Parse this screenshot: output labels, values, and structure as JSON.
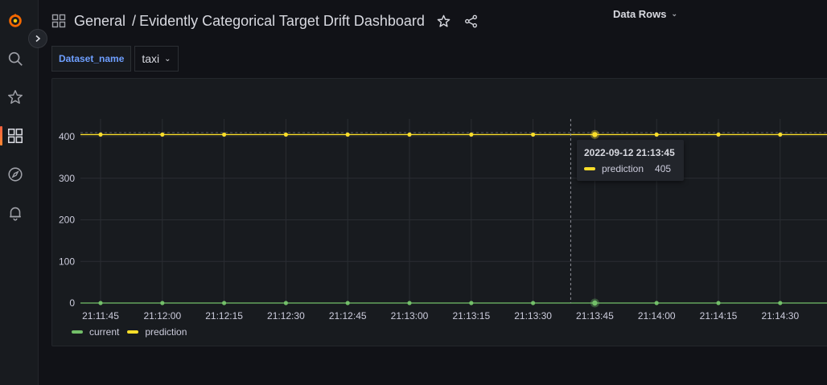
{
  "breadcrumb": {
    "folder": "General",
    "separator": "/",
    "dashboard": "Evidently Categorical Target Drift Dashboard"
  },
  "sidebar": {
    "items": [
      {
        "icon": "grafana-logo-icon"
      },
      {
        "icon": "search-icon"
      },
      {
        "icon": "star-icon"
      },
      {
        "icon": "dashboards-grid-icon",
        "active": true
      },
      {
        "icon": "compass-explore-icon"
      },
      {
        "icon": "bell-alerting-icon"
      }
    ]
  },
  "variables": {
    "label": "Dataset_name",
    "value": "taxi",
    "chevron": "⌄"
  },
  "panel": {
    "title": "Data Rows",
    "chevron": "⌄"
  },
  "tooltip": {
    "time": "2022-09-12 21:13:45",
    "series": "prediction",
    "value": "405"
  },
  "colors": {
    "current": "#73bf69",
    "prediction": "#fade2a"
  },
  "chart_data": {
    "type": "line",
    "title": "Data Rows",
    "x": [
      "21:11:45",
      "21:12:00",
      "21:12:15",
      "21:12:30",
      "21:12:45",
      "21:13:00",
      "21:13:15",
      "21:13:30",
      "21:13:45",
      "21:14:00",
      "21:14:15",
      "21:14:30"
    ],
    "series": [
      {
        "name": "current",
        "values": [
          0,
          0,
          0,
          0,
          0,
          0,
          0,
          0,
          0,
          0,
          0,
          0
        ]
      },
      {
        "name": "prediction",
        "values": [
          405,
          405,
          405,
          405,
          405,
          405,
          405,
          405,
          405,
          405,
          405,
          405
        ]
      }
    ],
    "yticks": [
      "0",
      "100",
      "200",
      "300",
      "400"
    ],
    "ylim": [
      0,
      400
    ],
    "grid": true,
    "legend": "bottom-left"
  }
}
